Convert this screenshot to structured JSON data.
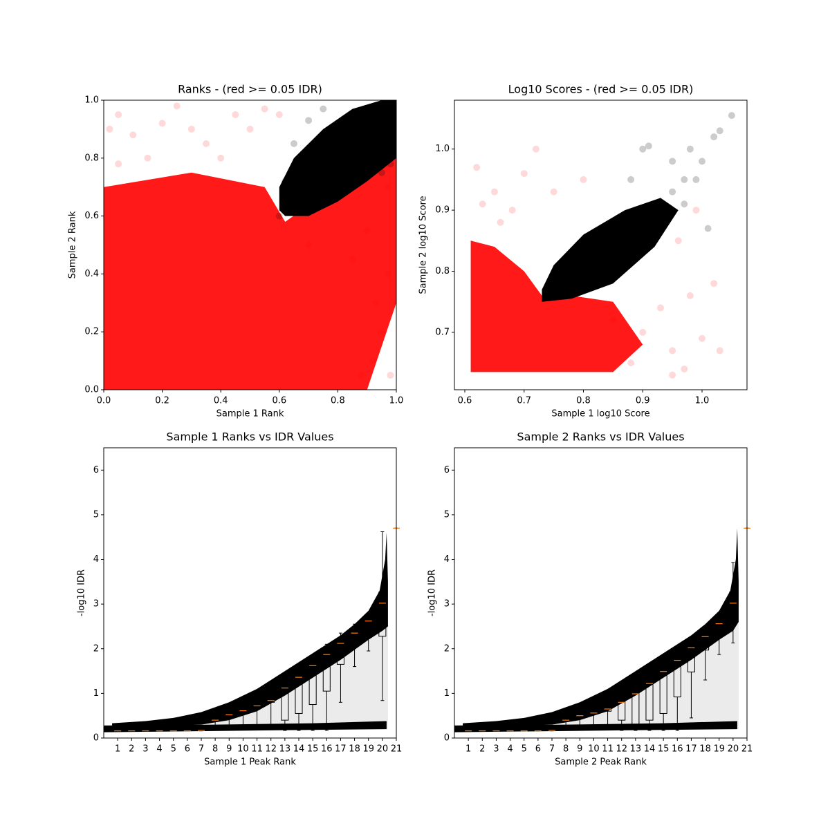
{
  "chart_data": [
    {
      "type": "scatter",
      "title": "Ranks - (red >= 0.05 IDR)",
      "xlabel": "Sample 1 Rank",
      "ylabel": "Sample 2 Rank",
      "xlim": [
        0,
        1
      ],
      "ylim": [
        0,
        1
      ],
      "xticks": [
        {
          "value": 0,
          "label": "0.0"
        },
        {
          "value": 0.2,
          "label": "0.2"
        },
        {
          "value": 0.4,
          "label": "0.4"
        },
        {
          "value": 0.6,
          "label": "0.6"
        },
        {
          "value": 0.8,
          "label": "0.8"
        },
        {
          "value": 1,
          "label": "1.0"
        }
      ],
      "yticks": [
        {
          "value": 0,
          "label": "0.0"
        },
        {
          "value": 0.2,
          "label": "0.2"
        },
        {
          "value": 0.4,
          "label": "0.4"
        },
        {
          "value": 0.6,
          "label": "0.6"
        },
        {
          "value": 0.8,
          "label": "0.8"
        },
        {
          "value": 1,
          "label": "1.0"
        }
      ],
      "regions": [
        {
          "color": "#ff0000",
          "alpha": 0.9,
          "x": [
            0,
            0.9,
            1,
            1,
            0.62,
            0.55,
            0.3,
            0
          ],
          "values": [
            0,
            0,
            0.3,
            0.85,
            0.58,
            0.7,
            0.75,
            0.7
          ]
        },
        {
          "color": "#000000",
          "alpha": 1,
          "x": [
            0.6,
            0.62,
            0.7,
            0.8,
            0.9,
            1,
            1,
            0.95,
            0.85,
            0.75,
            0.65,
            0.6
          ],
          "values": [
            0.62,
            0.6,
            0.6,
            0.65,
            0.72,
            0.8,
            1,
            1,
            0.97,
            0.9,
            0.8,
            0.7
          ]
        }
      ],
      "series": [
        {
          "color": "#ff0000",
          "alpha": 0.15,
          "x": [
            0.05,
            0.1,
            0.2,
            0.15,
            0.3,
            0.35,
            0.05,
            0.45,
            0.25,
            0.4,
            0.5,
            0.55,
            0.92,
            0.95,
            0.88,
            0.97,
            0.93,
            0.98,
            0.85,
            0.9,
            0.97,
            0.7,
            0.6,
            0.02
          ],
          "values": [
            0.95,
            0.88,
            0.92,
            0.8,
            0.9,
            0.85,
            0.78,
            0.95,
            0.98,
            0.8,
            0.9,
            0.97,
            0.1,
            0.2,
            0.05,
            0.4,
            0.3,
            0.05,
            0.45,
            0.55,
            0.7,
            0.5,
            0.95,
            0.9
          ]
        },
        {
          "color": "#000000",
          "alpha": 0.2,
          "x": [
            0.6,
            0.62,
            0.65,
            0.7,
            0.75,
            0.95,
            0.98
          ],
          "values": [
            0.6,
            0.72,
            0.85,
            0.93,
            0.97,
            0.75,
            0.78
          ]
        }
      ]
    },
    {
      "type": "scatter",
      "title": "Log10 Scores - (red >= 0.05 IDR)",
      "xlabel": "Sample 1 log10 Score",
      "ylabel": "Sample 2 log10 Score",
      "xlim": [
        0.5825,
        1.0758
      ],
      "ylim": [
        0.606,
        1.08
      ],
      "xticks": [
        0.6,
        0.7,
        0.8,
        0.9,
        {
          "value": 1,
          "label": "1.0"
        }
      ],
      "yticks": [
        0.7,
        0.8,
        0.9,
        {
          "value": 1,
          "label": "1.0"
        }
      ],
      "regions": [
        {
          "color": "#ff0000",
          "alpha": 0.9,
          "x": [
            0.61,
            0.85,
            0.9,
            0.85,
            0.78,
            0.73,
            0.7,
            0.65,
            0.61
          ],
          "values": [
            0.635,
            0.635,
            0.68,
            0.75,
            0.76,
            0.76,
            0.8,
            0.84,
            0.85
          ]
        },
        {
          "color": "#000000",
          "alpha": 1,
          "x": [
            0.73,
            0.78,
            0.85,
            0.92,
            0.96,
            0.93,
            0.87,
            0.8,
            0.75,
            0.73
          ],
          "values": [
            0.75,
            0.755,
            0.78,
            0.84,
            0.9,
            0.92,
            0.9,
            0.86,
            0.81,
            0.77
          ]
        }
      ],
      "series": [
        {
          "color": "#ff0000",
          "alpha": 0.15,
          "x": [
            0.62,
            0.65,
            0.68,
            0.7,
            0.72,
            0.66,
            0.75,
            0.8,
            0.63,
            0.88,
            0.9,
            0.95,
            0.97,
            1.0,
            1.03,
            0.98,
            1.02,
            0.99,
            0.96,
            0.93,
            0.95,
            0.85
          ],
          "values": [
            0.97,
            0.93,
            0.9,
            0.96,
            1.0,
            0.88,
            0.93,
            0.95,
            0.91,
            0.65,
            0.7,
            0.67,
            0.64,
            0.69,
            0.67,
            0.76,
            0.78,
            0.9,
            0.85,
            0.74,
            0.63,
            0.72
          ]
        },
        {
          "color": "#000000",
          "alpha": 0.2,
          "x": [
            0.9,
            0.91,
            0.95,
            0.98,
            1.02,
            1.05,
            1.03,
            0.97,
            0.99,
            1.0,
            0.95,
            0.88,
            1.01,
            0.86,
            0.97
          ],
          "values": [
            1.0,
            1.005,
            0.98,
            1.0,
            1.02,
            1.055,
            1.03,
            0.95,
            0.95,
            0.98,
            0.93,
            0.95,
            0.87,
            0.88,
            0.91
          ]
        }
      ]
    },
    {
      "type": "box",
      "title": "Sample 1 Ranks vs IDR Values",
      "xlabel": "Sample 1 Peak Rank",
      "ylabel": "-log10 IDR",
      "xlim": [
        0,
        21
      ],
      "ylim": [
        0,
        6.5
      ],
      "xticks": [
        1,
        2,
        3,
        4,
        5,
        6,
        7,
        8,
        9,
        10,
        11,
        12,
        13,
        14,
        15,
        16,
        17,
        18,
        19,
        20,
        21
      ],
      "yticks": [
        0,
        1,
        2,
        3,
        4,
        5,
        6
      ],
      "regions": [
        {
          "color": "#000000",
          "alpha": 0.08,
          "x": [
            0.6,
            20.4,
            20.4,
            19,
            15,
            11,
            7
          ],
          "values": [
            0.25,
            0.2,
            2.5,
            2.2,
            1.35,
            0.6,
            0.3
          ]
        },
        {
          "color": "#000000",
          "alpha": 1,
          "x": [
            0.6,
            3,
            5,
            7,
            9,
            11,
            13,
            15,
            17,
            18,
            19,
            19.8,
            20.2,
            20.3,
            20.4,
            20.4,
            20,
            19,
            17,
            15,
            13,
            11,
            9,
            7,
            5,
            3,
            0.6
          ],
          "values": [
            0.33,
            0.38,
            0.45,
            0.58,
            0.8,
            1.1,
            1.5,
            1.9,
            2.3,
            2.55,
            2.85,
            3.3,
            4.0,
            4.6,
            3.5,
            2.5,
            2.4,
            2.2,
            1.75,
            1.35,
            0.95,
            0.6,
            0.4,
            0.3,
            0.28,
            0.27,
            0.25
          ]
        },
        {
          "color": "#000000",
          "alpha": 1,
          "x": [
            0,
            20.3,
            20.3,
            15,
            8,
            0
          ],
          "values": [
            0.13,
            0.2,
            0.38,
            0.33,
            0.3,
            0.28
          ]
        }
      ],
      "positions": [
        1,
        2,
        3,
        4,
        5,
        6,
        7,
        8,
        9,
        10,
        11,
        12,
        13,
        14,
        15,
        16,
        17,
        18,
        19,
        20,
        21
      ],
      "medians": [
        0.16,
        0.16,
        0.16,
        0.16,
        0.16,
        0.16,
        0.17,
        0.4,
        0.52,
        0.61,
        0.72,
        0.84,
        1.12,
        1.36,
        1.62,
        1.87,
        2.12,
        2.35,
        2.62,
        3.02,
        4.7
      ],
      "q1": [
        0.16,
        0.16,
        0.16,
        0.16,
        0.16,
        0.16,
        0.17,
        0.4,
        0.52,
        0.61,
        0.72,
        0.8,
        0.4,
        0.55,
        0.75,
        1.05,
        1.65,
        2.1,
        2.45,
        2.28,
        4.7
      ],
      "q3": [
        0.16,
        0.16,
        0.16,
        0.16,
        0.16,
        0.16,
        0.18,
        0.41,
        0.53,
        0.62,
        0.73,
        0.86,
        1.15,
        1.37,
        1.62,
        1.87,
        2.12,
        2.35,
        2.62,
        3.27,
        4.7
      ],
      "whisker_low": [
        0.16,
        0.16,
        0.16,
        0.16,
        0.16,
        0.16,
        0.16,
        0.2,
        0.2,
        0.2,
        0.2,
        0.2,
        0.17,
        0.17,
        0.17,
        0.17,
        0.8,
        1.6,
        1.95,
        0.84,
        4.7
      ],
      "whisker_high": [
        0.16,
        0.16,
        0.16,
        0.16,
        0.16,
        0.16,
        0.2,
        0.42,
        0.55,
        0.65,
        0.76,
        0.9,
        1.2,
        1.45,
        1.85,
        2.1,
        2.35,
        2.55,
        2.8,
        4.62,
        4.7
      ],
      "median_color": "#ff7f0e"
    },
    {
      "type": "box",
      "title": "Sample 2 Ranks vs IDR Values",
      "xlabel": "Sample 2 Peak Rank",
      "ylabel": "-log10 IDR",
      "xlim": [
        0,
        21
      ],
      "ylim": [
        0,
        6.5
      ],
      "xticks": [
        1,
        2,
        3,
        4,
        5,
        6,
        7,
        8,
        9,
        10,
        11,
        12,
        13,
        14,
        15,
        16,
        17,
        18,
        19,
        20,
        21
      ],
      "yticks": [
        0,
        1,
        2,
        3,
        4,
        5,
        6
      ],
      "regions": [
        {
          "color": "#000000",
          "alpha": 0.08,
          "x": [
            0.6,
            20.4,
            20.4,
            19,
            15,
            11,
            7
          ],
          "values": [
            0.25,
            0.2,
            2.6,
            2.2,
            1.35,
            0.6,
            0.3
          ]
        },
        {
          "color": "#000000",
          "alpha": 1,
          "x": [
            0.6,
            3,
            5,
            7,
            9,
            11,
            13,
            15,
            17,
            18,
            19,
            19.8,
            20.2,
            20.3,
            20.4,
            20.4,
            20,
            19,
            17,
            15,
            13,
            11,
            9,
            7,
            5,
            3,
            0.6
          ],
          "values": [
            0.33,
            0.38,
            0.45,
            0.58,
            0.8,
            1.1,
            1.5,
            1.9,
            2.3,
            2.55,
            2.85,
            3.3,
            4.0,
            4.7,
            3.5,
            2.6,
            2.4,
            2.2,
            1.75,
            1.35,
            0.95,
            0.6,
            0.4,
            0.3,
            0.28,
            0.27,
            0.25
          ]
        },
        {
          "color": "#000000",
          "alpha": 1,
          "x": [
            0,
            20.3,
            20.3,
            15,
            8,
            0
          ],
          "values": [
            0.13,
            0.2,
            0.38,
            0.33,
            0.3,
            0.28
          ]
        }
      ],
      "positions": [
        1,
        2,
        3,
        4,
        5,
        6,
        7,
        8,
        9,
        10,
        11,
        12,
        13,
        14,
        15,
        16,
        17,
        18,
        19,
        20,
        21
      ],
      "medians": [
        0.16,
        0.16,
        0.16,
        0.16,
        0.16,
        0.16,
        0.17,
        0.4,
        0.5,
        0.56,
        0.65,
        0.8,
        0.99,
        1.22,
        1.49,
        1.74,
        2.02,
        2.27,
        2.56,
        3.02,
        4.7
      ],
      "q1": [
        0.16,
        0.16,
        0.16,
        0.16,
        0.16,
        0.16,
        0.17,
        0.4,
        0.5,
        0.56,
        0.6,
        0.4,
        0.3,
        0.4,
        0.55,
        0.92,
        1.48,
        1.97,
        2.37,
        2.82,
        4.7
      ],
      "q3": [
        0.16,
        0.16,
        0.16,
        0.16,
        0.16,
        0.16,
        0.18,
        0.41,
        0.51,
        0.57,
        0.66,
        0.82,
        1.0,
        1.22,
        1.49,
        1.74,
        2.02,
        2.27,
        2.56,
        3.27,
        4.7
      ],
      "whisker_low": [
        0.16,
        0.16,
        0.16,
        0.16,
        0.16,
        0.16,
        0.16,
        0.2,
        0.2,
        0.2,
        0.2,
        0.17,
        0.17,
        0.17,
        0.17,
        0.17,
        0.45,
        1.3,
        1.87,
        2.13,
        4.7
      ],
      "whisker_high": [
        0.16,
        0.16,
        0.16,
        0.16,
        0.16,
        0.16,
        0.2,
        0.42,
        0.52,
        0.6,
        0.7,
        0.85,
        1.1,
        1.4,
        1.75,
        2.0,
        2.27,
        2.5,
        2.75,
        3.93,
        4.7
      ],
      "median_color": "#ff7f0e"
    }
  ]
}
